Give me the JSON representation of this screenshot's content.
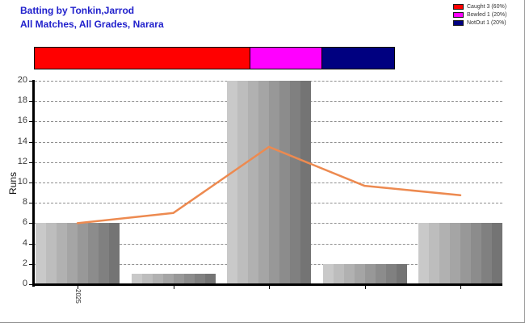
{
  "header": {
    "title": "Batting by Tonkin,Jarrod",
    "subtitle": "All Matches, All Grades, Narara",
    "color": "#2121cc"
  },
  "legend": {
    "items": [
      {
        "label": "Caught 3 (60%)",
        "color": "#ff0000"
      },
      {
        "label": "Bowled 1 (20%)",
        "color": "#ff00ff"
      },
      {
        "label": "NotOut 1 (20%)",
        "color": "#000080"
      }
    ]
  },
  "dismissal_bar": {
    "segments": [
      {
        "name": "Caught",
        "percent": 60,
        "color": "#ff0000"
      },
      {
        "name": "Bowled",
        "percent": 20,
        "color": "#ff00ff"
      },
      {
        "name": "NotOut",
        "percent": 20,
        "color": "#000080"
      }
    ]
  },
  "chart_data": {
    "type": "bar",
    "title": "Batting by Tonkin,Jarrod — All Matches, All Grades, Narara",
    "ylabel": "Runs",
    "xlabel": "",
    "ylim": [
      0,
      20
    ],
    "ytick_step": 2,
    "grid": "horizontal-dashed",
    "categories": [
      "2025",
      "",
      "",
      "",
      ""
    ],
    "values": [
      6,
      1,
      20,
      2,
      6
    ],
    "bar_gradient": [
      "#c9c9c9",
      "#747474"
    ],
    "line_overlay": {
      "values": [
        6,
        7,
        13.5,
        9.67,
        8.75
      ],
      "color": "#ed8a50",
      "stroke_width": 2.5
    }
  }
}
